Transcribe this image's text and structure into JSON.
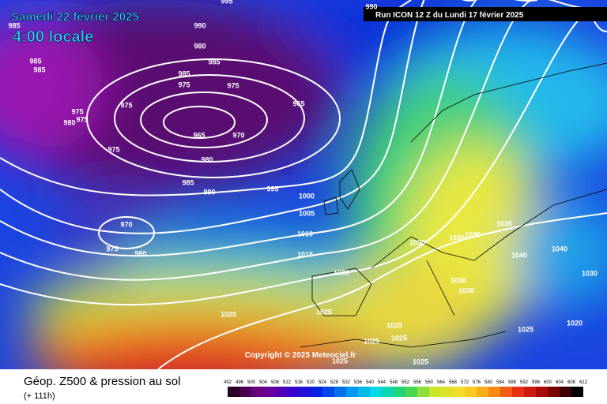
{
  "header": {
    "date": "Samedi 22 février 2025",
    "time": "4:00 locale",
    "run": "Run ICON 12 Z du Lundi 17 février 2025"
  },
  "isobar_labels": [
    "995",
    "985",
    "985",
    "985",
    "990",
    "980",
    "985",
    "985",
    "975",
    "975",
    "975",
    "965",
    "975",
    "980",
    "975",
    "965",
    "970",
    "975",
    "980",
    "985",
    "990",
    "995",
    "1000",
    "1005",
    "990",
    "1010",
    "970",
    "975",
    "980",
    "1015",
    "1020",
    "1025",
    "1025",
    "1025",
    "1025",
    "1025",
    "1025",
    "1025",
    "1030",
    "1030",
    "1030",
    "1035",
    "1040",
    "1040",
    "1030",
    "1030",
    "1030",
    "1025",
    "1020"
  ],
  "copyright": "Copyright © 2025 Meteociel.fr",
  "footer": {
    "title": "Géop. Z500 & pression au sol",
    "lead": "(+ 111h)"
  },
  "colorbar": {
    "labels": [
      "492",
      "496",
      "500",
      "504",
      "508",
      "512",
      "516",
      "520",
      "524",
      "528",
      "532",
      "536",
      "540",
      "544",
      "548",
      "552",
      "556",
      "560",
      "564",
      "568",
      "572",
      "576",
      "580",
      "584",
      "588",
      "592",
      "596",
      "600",
      "604",
      "608",
      "612"
    ]
  }
}
